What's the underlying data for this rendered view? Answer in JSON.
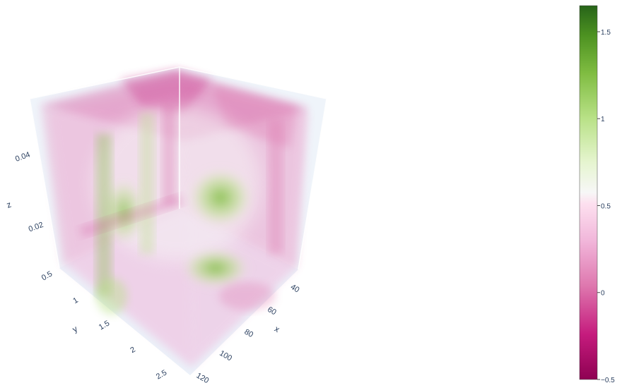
{
  "chart_data": {
    "type": "volume",
    "colorscale": "PiYG",
    "colors": {
      "low": "#8e0152",
      "low_mid": "#de77ae",
      "mid": "#f7f7f7",
      "high_mid": "#b8e186",
      "high": "#276419"
    },
    "axes": {
      "x": {
        "label": "x",
        "ticks": [
          "40",
          "60",
          "80",
          "100",
          "120"
        ],
        "range": [
          30,
          120
        ]
      },
      "y": {
        "label": "y",
        "ticks": [
          "0.5",
          "1",
          "1.5",
          "2",
          "2.5"
        ],
        "range": [
          0.5,
          2.5
        ]
      },
      "z": {
        "label": "z",
        "ticks": [
          "0.02",
          "0.04"
        ],
        "range": [
          0.005,
          0.052
        ]
      }
    },
    "colorbar": {
      "ticks": [
        "−0.5",
        "0",
        "0.5",
        "1",
        "1.5"
      ],
      "tick_values": [
        -0.5,
        0,
        0.5,
        1,
        1.5
      ],
      "range": [
        -0.5,
        1.65
      ]
    }
  }
}
